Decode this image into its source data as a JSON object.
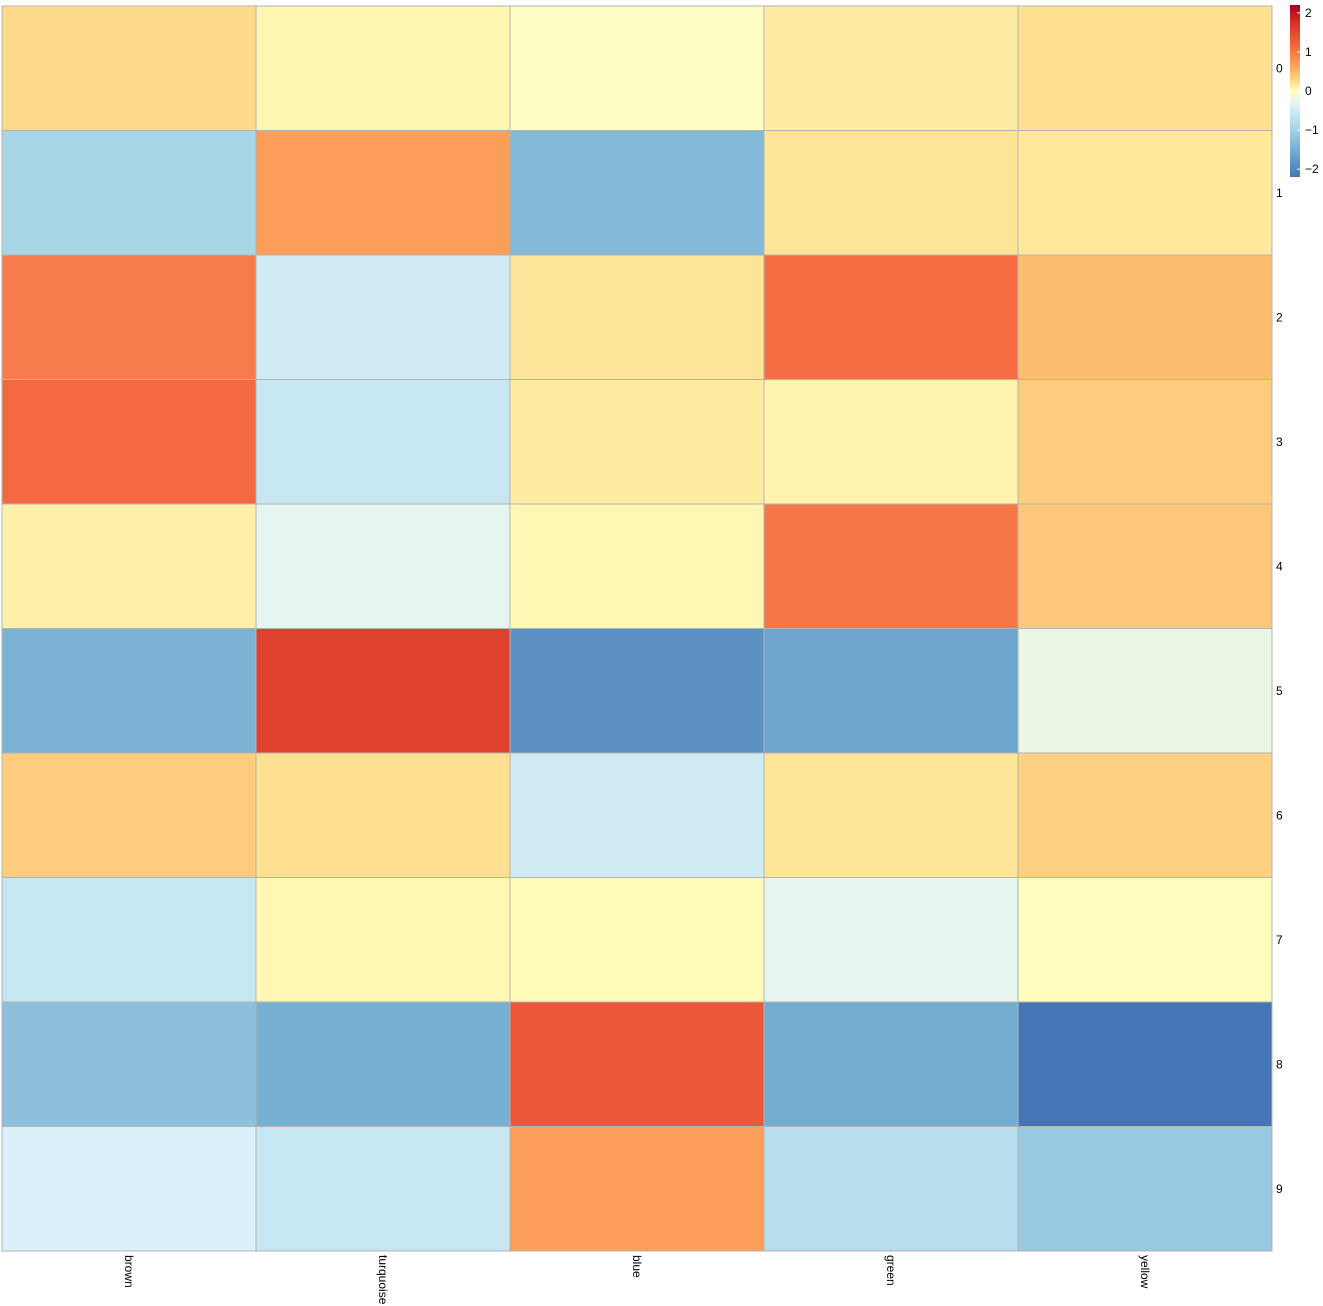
{
  "chart_data": {
    "type": "heatmap",
    "title": "",
    "xlabel": "",
    "ylabel": "",
    "columns": [
      "brown",
      "turquoise",
      "blue",
      "green",
      "yellow"
    ],
    "rows": [
      "0",
      "1",
      "2",
      "3",
      "4",
      "5",
      "6",
      "7",
      "8",
      "9"
    ],
    "values": [
      [
        0.45,
        0.12,
        -0.02,
        0.25,
        0.4
      ],
      [
        -0.85,
        1.05,
        -1.3,
        0.35,
        0.3
      ],
      [
        1.35,
        -0.45,
        0.35,
        1.5,
        0.75
      ],
      [
        1.55,
        -0.55,
        0.25,
        0.15,
        0.6
      ],
      [
        0.2,
        -0.25,
        0.1,
        1.4,
        0.65
      ],
      [
        -1.4,
        2.0,
        -1.85,
        -1.6,
        -0.2
      ],
      [
        0.6,
        0.4,
        -0.45,
        0.35,
        0.55
      ],
      [
        -0.55,
        0.1,
        0.05,
        -0.25,
        0.02
      ],
      [
        -1.2,
        -1.45,
        1.75,
        -1.5,
        -2.2
      ],
      [
        -0.35,
        -0.55,
        1.05,
        -0.7,
        -1.05
      ]
    ],
    "colorbar": {
      "ticks": [
        "2",
        "1",
        "0",
        "−1",
        "−2"
      ],
      "tick_values": [
        2,
        1,
        0,
        -1,
        -2
      ],
      "range": [
        -2.2,
        2.2
      ]
    },
    "colors": {
      "low": "#4575b4",
      "mid": "#ffffbf",
      "high": "#d73027",
      "border": "#b3b3b3"
    },
    "grid": false,
    "legend": "top-right"
  }
}
